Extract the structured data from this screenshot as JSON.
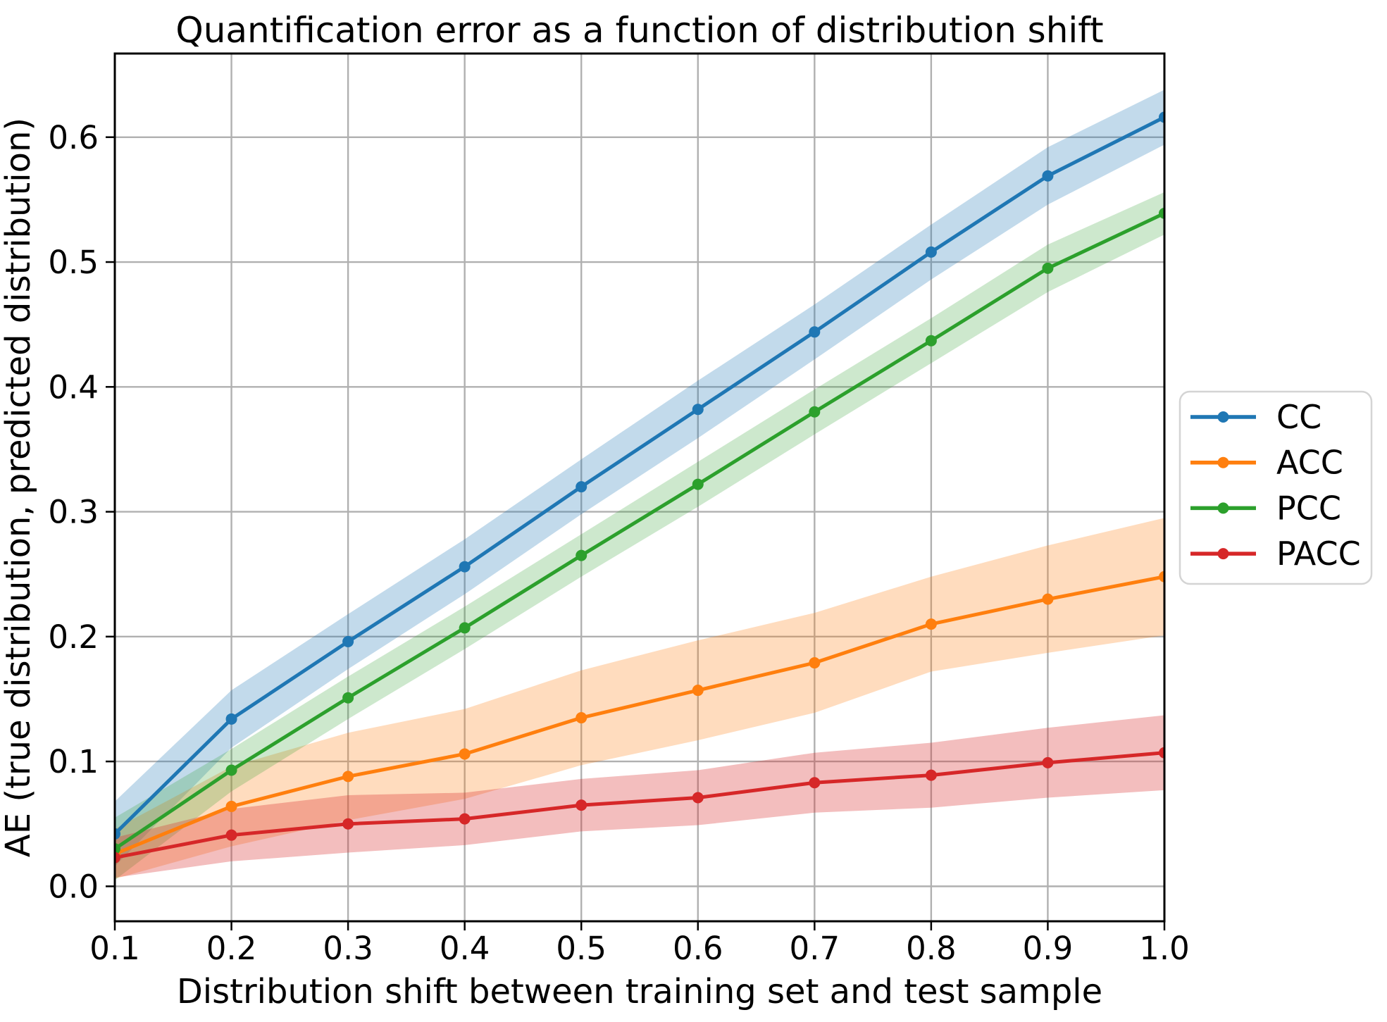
{
  "chart_data": {
    "type": "line",
    "title": "Quantification error as a function of distribution shift",
    "xlabel": "Distribution shift between training set and test sample",
    "ylabel": "AE (true distribution, predicted distribution)",
    "x": [
      0.1,
      0.2,
      0.3,
      0.4,
      0.5,
      0.6,
      0.7,
      0.8,
      0.9,
      1.0
    ],
    "xlim": [
      0.1,
      1.0
    ],
    "ylim": [
      -0.028,
      0.667
    ],
    "x_ticks": [
      0.1,
      0.2,
      0.3,
      0.4,
      0.5,
      0.6,
      0.7,
      0.8,
      0.9,
      1.0
    ],
    "x_tick_labels": [
      "0.1",
      "0.2",
      "0.3",
      "0.4",
      "0.5",
      "0.6",
      "0.7",
      "0.8",
      "0.9",
      "1.0"
    ],
    "y_ticks": [
      0.0,
      0.1,
      0.2,
      0.3,
      0.4,
      0.5,
      0.6
    ],
    "y_tick_labels": [
      "0.0",
      "0.1",
      "0.2",
      "0.3",
      "0.4",
      "0.5",
      "0.6"
    ],
    "grid": true,
    "grid_color": "#b0b0b0",
    "background_color": "#ffffff",
    "spine_color": "#000000",
    "legend_position": "right-outside",
    "legend_border_color": "#d4d4d4",
    "series": [
      {
        "name": "CC",
        "color": "#1f77b4",
        "band_alpha": 0.27,
        "values": [
          0.042,
          0.134,
          0.196,
          0.256,
          0.32,
          0.382,
          0.444,
          0.508,
          0.569,
          0.616
        ],
        "band_lower": [
          0.016,
          0.111,
          0.174,
          0.234,
          0.298,
          0.359,
          0.422,
          0.486,
          0.546,
          0.594
        ],
        "band_upper": [
          0.068,
          0.157,
          0.218,
          0.278,
          0.342,
          0.405,
          0.466,
          0.53,
          0.592,
          0.638
        ]
      },
      {
        "name": "ACC",
        "color": "#ff7f0e",
        "band_alpha": 0.27,
        "values": [
          0.026,
          0.064,
          0.088,
          0.106,
          0.135,
          0.157,
          0.179,
          0.21,
          0.23,
          0.248
        ],
        "band_lower": [
          0.006,
          0.032,
          0.053,
          0.07,
          0.097,
          0.117,
          0.139,
          0.172,
          0.187,
          0.201
        ],
        "band_upper": [
          0.046,
          0.096,
          0.123,
          0.142,
          0.173,
          0.197,
          0.219,
          0.248,
          0.273,
          0.295
        ]
      },
      {
        "name": "PCC",
        "color": "#2ca02c",
        "band_alpha": 0.24,
        "values": [
          0.03,
          0.093,
          0.151,
          0.207,
          0.265,
          0.322,
          0.38,
          0.437,
          0.495,
          0.539
        ],
        "band_lower": [
          0.005,
          0.076,
          0.134,
          0.19,
          0.248,
          0.304,
          0.362,
          0.419,
          0.476,
          0.522
        ],
        "band_upper": [
          0.055,
          0.11,
          0.168,
          0.224,
          0.282,
          0.34,
          0.398,
          0.455,
          0.514,
          0.556
        ]
      },
      {
        "name": "PACC",
        "color": "#d62728",
        "band_alpha": 0.3,
        "values": [
          0.023,
          0.041,
          0.05,
          0.054,
          0.065,
          0.071,
          0.083,
          0.089,
          0.099,
          0.107
        ],
        "band_lower": [
          0.007,
          0.02,
          0.027,
          0.033,
          0.044,
          0.049,
          0.059,
          0.063,
          0.071,
          0.077
        ],
        "band_upper": [
          0.039,
          0.062,
          0.073,
          0.075,
          0.086,
          0.093,
          0.107,
          0.115,
          0.127,
          0.137
        ]
      }
    ]
  }
}
